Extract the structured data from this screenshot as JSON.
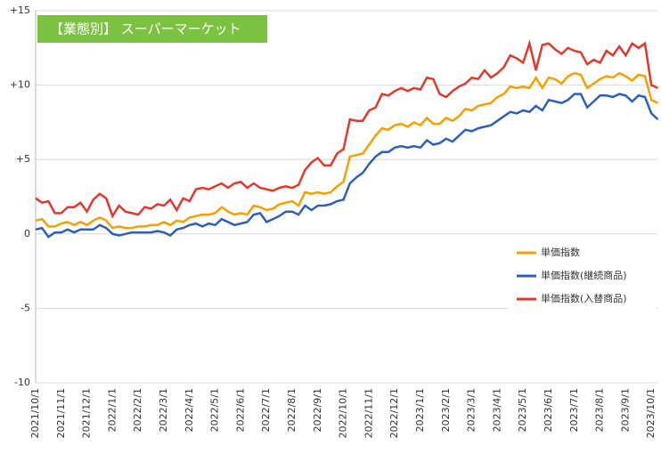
{
  "chart_data": {
    "type": "line",
    "title": "【業態別】 スーパーマーケット",
    "title_color": "#7cc242",
    "categories": [
      "2021/10/1",
      null,
      null,
      null,
      "2021/11/1",
      null,
      null,
      null,
      "2021/12/1",
      null,
      null,
      null,
      "2022/1/1",
      null,
      null,
      null,
      "2022/2/1",
      null,
      null,
      null,
      "2022/3/1",
      null,
      null,
      null,
      "2022/4/1",
      null,
      null,
      null,
      "2022/5/1",
      null,
      null,
      null,
      "2022/6/1",
      null,
      null,
      null,
      "2022/7/1",
      null,
      null,
      null,
      "2022/8/1",
      null,
      null,
      null,
      "2022/9/1",
      null,
      null,
      null,
      "2022/10/1",
      null,
      null,
      null,
      "2022/11/1",
      null,
      null,
      null,
      "2022/12/1",
      null,
      null,
      null,
      "2023/1/1",
      null,
      null,
      null,
      "2023/2/1",
      null,
      null,
      null,
      "2023/3/1",
      null,
      null,
      null,
      "2023/4/1",
      null,
      null,
      null,
      "2023/5/1",
      null,
      null,
      null,
      "2023/6/1",
      null,
      null,
      null,
      "2023/7/1",
      null,
      null,
      null,
      "2023/8/1",
      null,
      null,
      null,
      "2023/9/1",
      null,
      null,
      null,
      "2023/10/1",
      null
    ],
    "series": [
      {
        "name": "単価指数",
        "color": "#f5a000",
        "values": [
          0.9,
          1.0,
          0.5,
          0.5,
          0.7,
          0.8,
          0.6,
          0.8,
          0.6,
          0.9,
          1.1,
          0.9,
          0.4,
          0.5,
          0.4,
          0.4,
          0.5,
          0.5,
          0.6,
          0.6,
          0.8,
          0.6,
          0.9,
          0.8,
          1.1,
          1.2,
          1.3,
          1.3,
          1.4,
          1.8,
          1.5,
          1.3,
          1.4,
          1.3,
          1.9,
          1.8,
          1.6,
          1.7,
          2.0,
          2.1,
          2.2,
          1.9,
          2.8,
          2.7,
          2.8,
          2.7,
          2.8,
          3.2,
          3.5,
          5.2,
          5.3,
          5.4,
          6.0,
          6.6,
          7.1,
          7.0,
          7.3,
          7.4,
          7.2,
          7.5,
          7.3,
          7.8,
          7.4,
          7.4,
          7.8,
          7.6,
          7.9,
          8.4,
          8.3,
          8.6,
          8.7,
          8.8,
          9.2,
          9.4,
          9.9,
          9.8,
          9.9,
          9.8,
          10.5,
          9.8,
          10.5,
          10.4,
          10.1,
          10.6,
          10.8,
          10.7,
          9.8,
          10.1,
          10.4,
          10.6,
          10.5,
          10.8,
          10.6,
          10.3,
          10.7,
          10.6,
          9.0,
          8.8
        ]
      },
      {
        "name": "単価指数(継続商品)",
        "color": "#2f5fb8",
        "values": [
          0.3,
          0.4,
          -0.2,
          0.1,
          0.1,
          0.3,
          0.1,
          0.3,
          0.3,
          0.3,
          0.6,
          0.4,
          0.0,
          -0.1,
          0.0,
          0.1,
          0.1,
          0.1,
          0.1,
          0.2,
          0.1,
          -0.1,
          0.3,
          0.4,
          0.6,
          0.7,
          0.5,
          0.7,
          0.6,
          1.0,
          0.8,
          0.6,
          0.7,
          0.8,
          1.3,
          1.4,
          0.8,
          1.0,
          1.2,
          1.5,
          1.5,
          1.3,
          1.9,
          1.6,
          1.9,
          1.9,
          2.0,
          2.2,
          2.3,
          3.4,
          3.8,
          4.1,
          4.7,
          5.2,
          5.5,
          5.5,
          5.8,
          5.9,
          5.8,
          5.9,
          5.8,
          6.3,
          6.0,
          6.1,
          6.4,
          6.2,
          6.6,
          7.0,
          6.9,
          7.1,
          7.2,
          7.3,
          7.6,
          7.9,
          8.2,
          8.1,
          8.3,
          8.2,
          8.6,
          8.3,
          9.0,
          8.9,
          8.8,
          9.0,
          9.4,
          9.4,
          8.5,
          8.9,
          9.3,
          9.3,
          9.2,
          9.4,
          9.3,
          8.9,
          9.3,
          9.2,
          8.1,
          7.7
        ]
      },
      {
        "name": "単価指数(入替商品)",
        "color": "#e03a2e",
        "values": [
          2.4,
          2.1,
          2.2,
          1.4,
          1.4,
          1.8,
          1.8,
          2.1,
          1.5,
          2.3,
          2.7,
          2.4,
          1.2,
          1.9,
          1.5,
          1.4,
          1.3,
          1.8,
          1.7,
          2.0,
          1.9,
          2.3,
          1.6,
          2.4,
          2.2,
          3.0,
          3.1,
          3.0,
          3.2,
          3.4,
          3.1,
          3.4,
          3.5,
          3.1,
          3.4,
          3.1,
          3.0,
          2.9,
          3.1,
          3.2,
          3.1,
          3.3,
          4.3,
          4.8,
          5.1,
          4.6,
          4.6,
          5.4,
          5.7,
          7.7,
          7.6,
          7.6,
          8.3,
          8.5,
          9.4,
          9.3,
          9.6,
          9.8,
          9.6,
          9.8,
          9.7,
          10.5,
          10.4,
          9.4,
          9.2,
          9.6,
          9.9,
          10.1,
          10.5,
          10.4,
          11.0,
          10.5,
          10.8,
          11.2,
          12.0,
          11.8,
          11.5,
          12.8,
          11.0,
          12.7,
          12.8,
          12.4,
          12.1,
          12.5,
          12.3,
          12.2,
          11.4,
          11.7,
          11.5,
          12.3,
          12.0,
          12.6,
          12.0,
          12.8,
          12.5,
          12.8,
          10.0,
          9.8
        ]
      }
    ],
    "ylim": [
      -10,
      15
    ],
    "yticks": [
      -10,
      -5,
      0,
      {
        "value": 5,
        "label": "+5"
      },
      {
        "value": 10,
        "label": "+10"
      },
      {
        "value": 15,
        "label": "+15"
      }
    ],
    "grid": true,
    "legend": "right"
  }
}
